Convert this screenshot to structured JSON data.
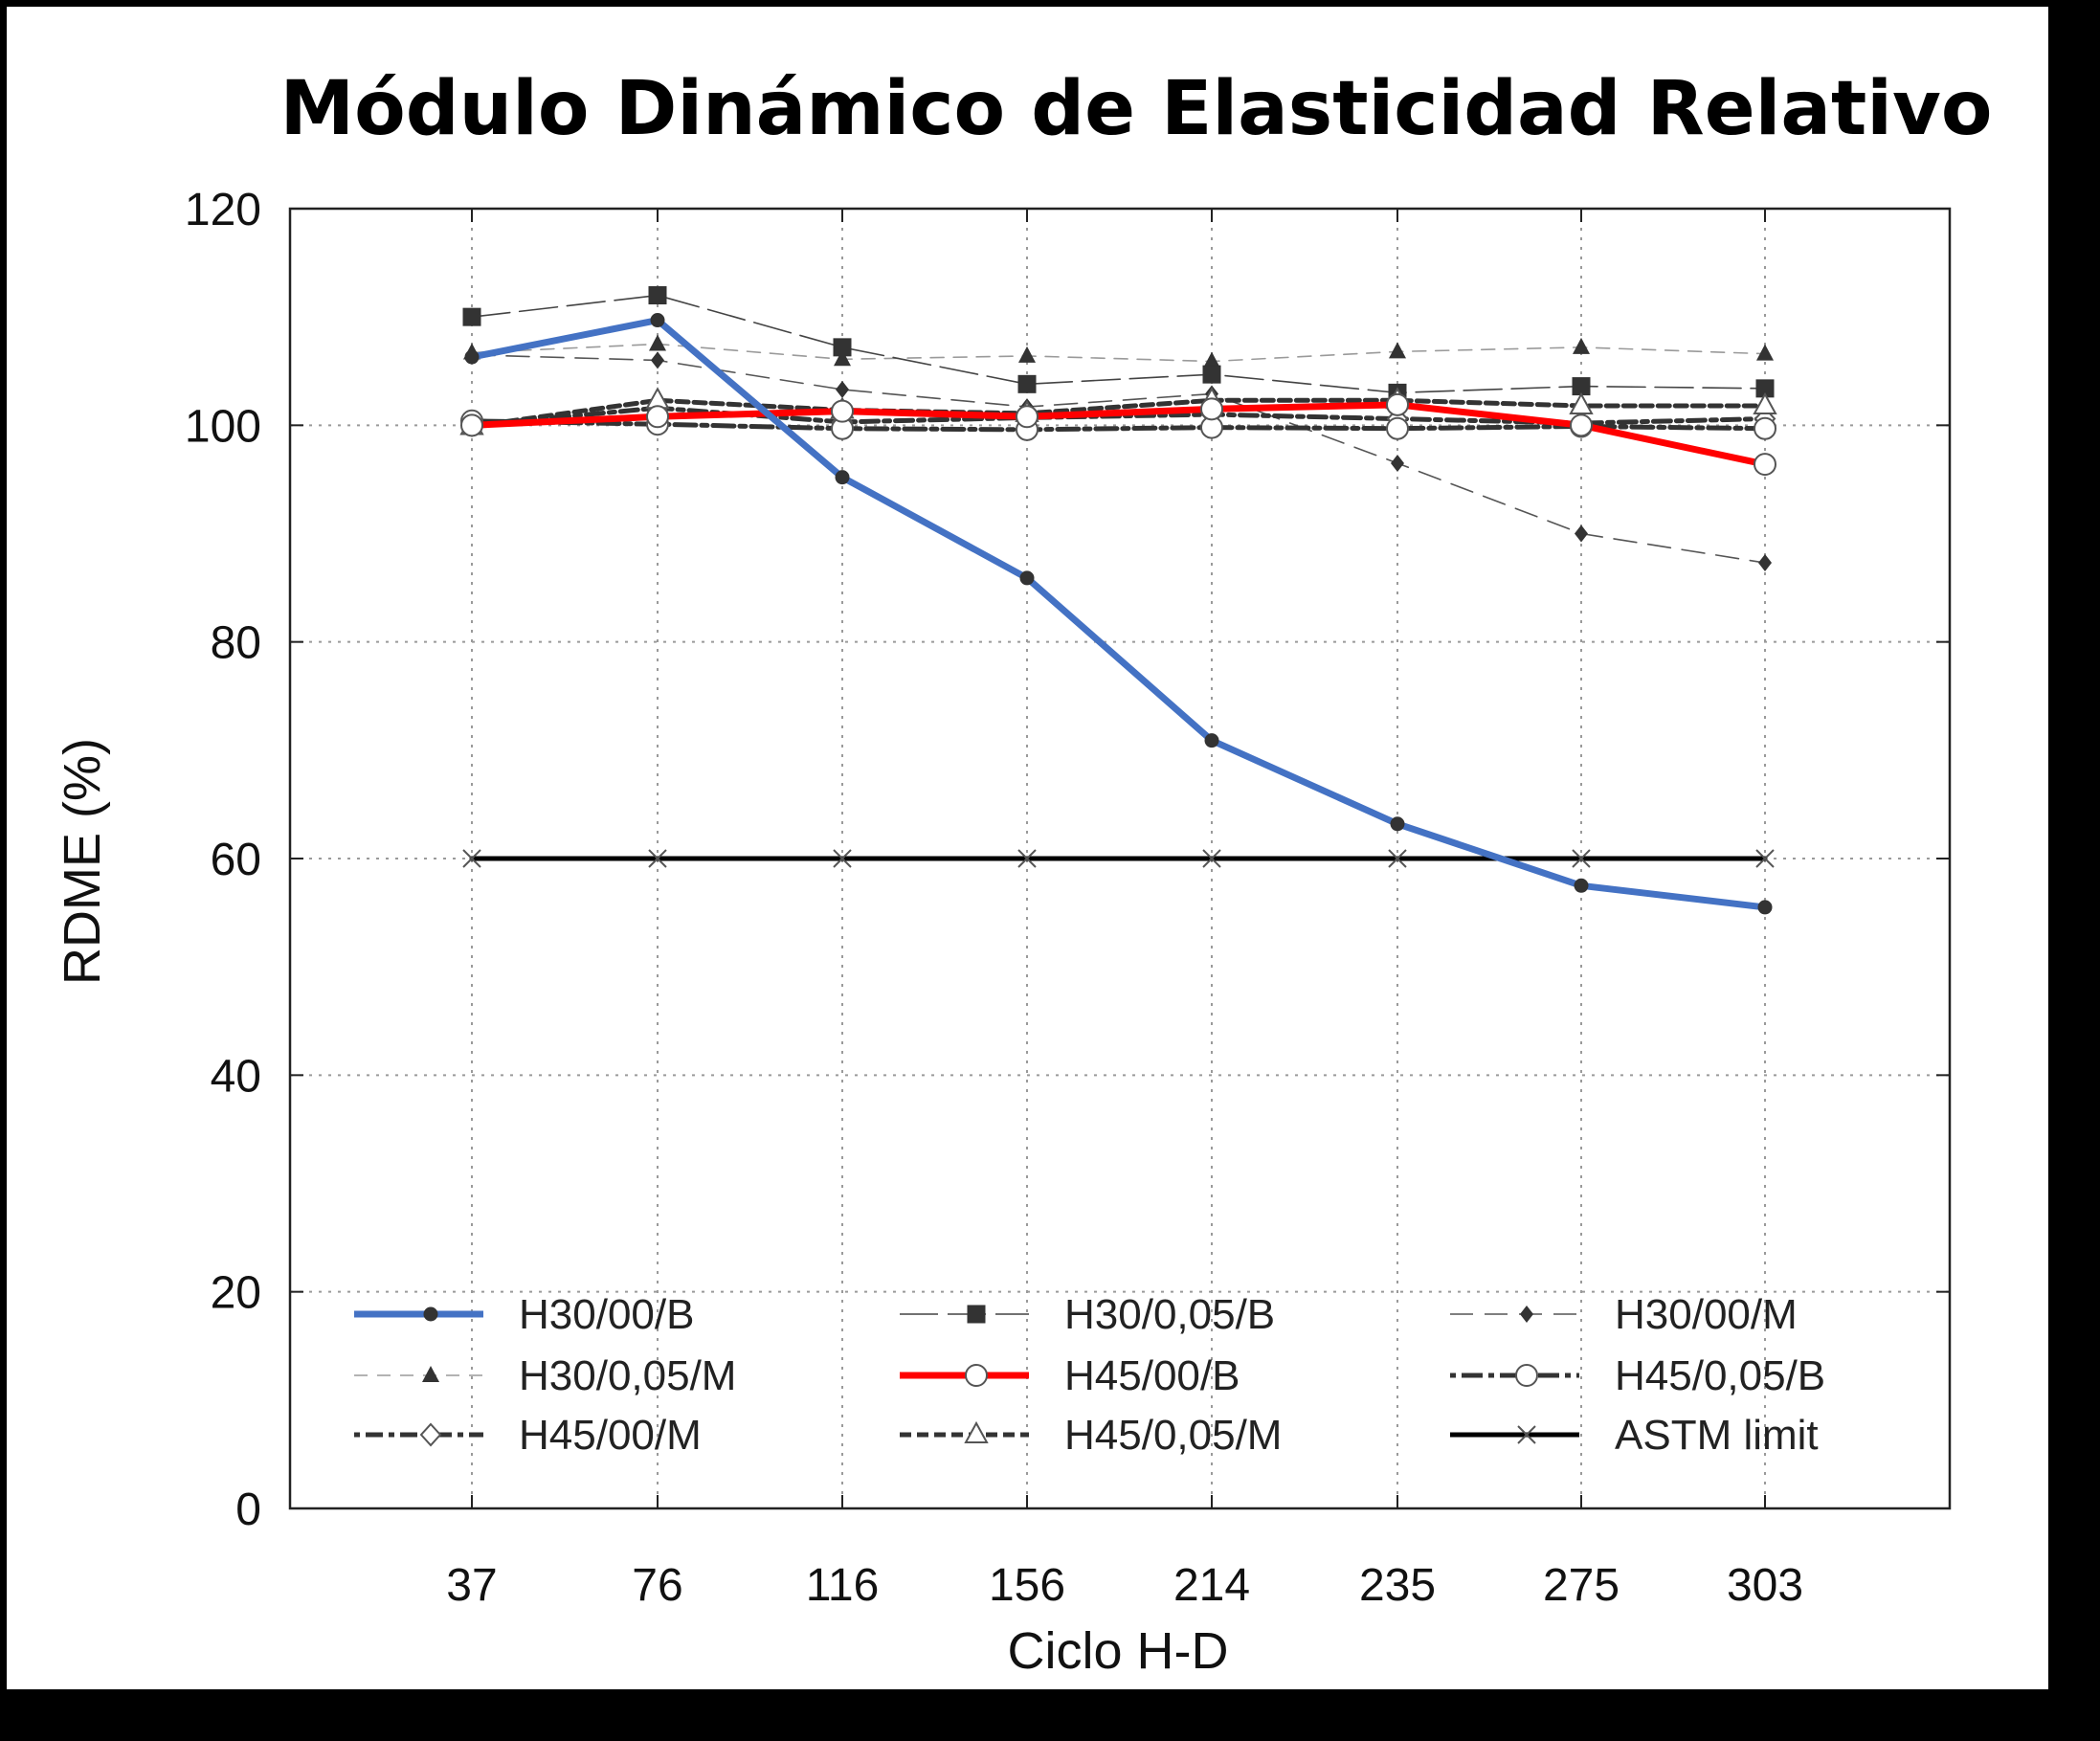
{
  "chart_data": {
    "type": "line",
    "title": "Módulo Dinámico de Elasticidad Relativo",
    "xlabel": "Ciclo H-D",
    "ylabel": "RDME (%)",
    "categories": [
      "37",
      "76",
      "116",
      "156",
      "214",
      "235",
      "275",
      "303"
    ],
    "ylim": [
      0,
      120
    ],
    "yticks": [
      0,
      20,
      40,
      60,
      80,
      100,
      120
    ],
    "grid": true,
    "legend_position": "bottom",
    "series": [
      {
        "name": "H30/00/B",
        "color": "#4472C4",
        "marker": "circle-filled",
        "values": [
          106.3,
          109.7,
          95.2,
          85.9,
          70.9,
          63.2,
          57.5,
          55.5
        ]
      },
      {
        "name": "H30/0,05/M",
        "color": "#9a9a9a",
        "marker": "triangle-filled",
        "values": [
          106.7,
          107.5,
          106.1,
          106.4,
          105.9,
          106.8,
          107.2,
          106.6
        ]
      },
      {
        "name": "H45/00/M",
        "color": "#333333",
        "marker": "diamond-open",
        "values": [
          100.0,
          101.6,
          100.3,
          100.7,
          101.0,
          100.6,
          100.2,
          100.6
        ]
      },
      {
        "name": "H30/0,05/B",
        "color": "#444444",
        "marker": "square-filled",
        "values": [
          110.0,
          112.0,
          107.2,
          103.8,
          104.7,
          103.0,
          103.6,
          103.4
        ]
      },
      {
        "name": "H45/00/B",
        "color": "#FF0000",
        "marker": "circle-open",
        "values": [
          100.0,
          100.8,
          101.3,
          100.8,
          101.5,
          101.9,
          100.0,
          96.4
        ]
      },
      {
        "name": "H45/0,05/M",
        "color": "#333333",
        "marker": "triangle-open",
        "values": [
          99.9,
          102.3,
          101.4,
          101.1,
          102.3,
          102.3,
          101.8,
          101.8
        ]
      },
      {
        "name": "H30/00/M",
        "color": "#555555",
        "marker": "diamond-filled",
        "values": [
          106.5,
          106.0,
          103.3,
          101.7,
          102.9,
          96.5,
          90.0,
          87.3
        ]
      },
      {
        "name": "H45/0,05/B",
        "color": "#333333",
        "marker": "circle-open",
        "values": [
          100.4,
          100.1,
          99.7,
          99.6,
          99.8,
          99.7,
          99.9,
          99.7
        ]
      },
      {
        "name": "ASTM limit",
        "color": "#000000",
        "marker": "x",
        "values": [
          60,
          60,
          60,
          60,
          60,
          60,
          60,
          60
        ]
      }
    ]
  }
}
